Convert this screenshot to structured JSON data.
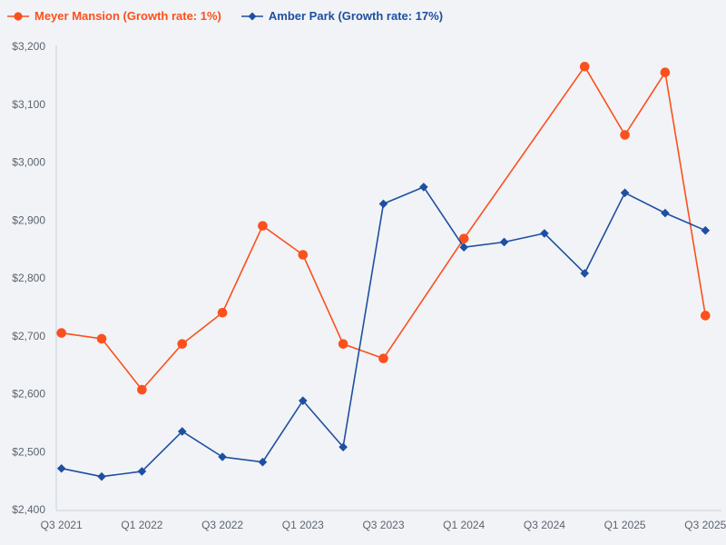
{
  "page": {
    "background_color": "#f1f3f6",
    "axis_line_color": "#c8d1df",
    "tick_label_color": "#5c6470"
  },
  "legend": {
    "items": [
      {
        "label": "Meyer Mansion (Growth rate: 1%)",
        "color": "#fb501d",
        "marker": "circle"
      },
      {
        "label": "Amber Park (Growth rate: 17%)",
        "color": "#1e4fa1",
        "marker": "diamond"
      }
    ]
  },
  "chart_data": {
    "type": "line",
    "title": "",
    "xlabel": "",
    "ylabel": "",
    "grid": false,
    "legend_position": "top-left",
    "connect_gaps": true,
    "x": [
      "Q3 2021",
      "Q4 2021",
      "Q1 2022",
      "Q2 2022",
      "Q3 2022",
      "Q4 2022",
      "Q1 2023",
      "Q2 2023",
      "Q3 2023",
      "Q4 2023",
      "Q1 2024",
      "Q2 2024",
      "Q3 2024",
      "Q4 2024",
      "Q1 2025",
      "Q2 2025",
      "Q3 2025"
    ],
    "x_tick_labels": [
      "Q3 2021",
      "Q1 2022",
      "Q3 2022",
      "Q1 2023",
      "Q3 2023",
      "Q1 2024",
      "Q3 2024",
      "Q1 2025",
      "Q3 2025"
    ],
    "y_ticks": [
      2400,
      2500,
      2600,
      2700,
      2800,
      2900,
      3000,
      3100,
      3200
    ],
    "y_tick_labels": [
      "$2,400",
      "$2,500",
      "$2,600",
      "$2,700",
      "$2,800",
      "$2,900",
      "$3,000",
      "$3,100",
      "$3,200"
    ],
    "ylim": [
      2400,
      3200
    ],
    "series": [
      {
        "name": "Meyer Mansion (Growth rate: 1%)",
        "slug": "meyer-mansion",
        "color": "#fb501d",
        "marker": "circle",
        "values": [
          2705,
          2695,
          2607,
          2686,
          2740,
          2890,
          2840,
          2686,
          2661,
          null,
          2868,
          null,
          null,
          3165,
          3047,
          3155,
          2735
        ]
      },
      {
        "name": "Amber Park (Growth rate: 17%)",
        "slug": "amber-park",
        "color": "#1e4fa1",
        "marker": "diamond",
        "values": [
          2471,
          2457,
          2466,
          2535,
          2491,
          2482,
          2588,
          2508,
          2928,
          2957,
          2853,
          2862,
          2877,
          2808,
          2947,
          2912,
          2882
        ]
      }
    ]
  }
}
